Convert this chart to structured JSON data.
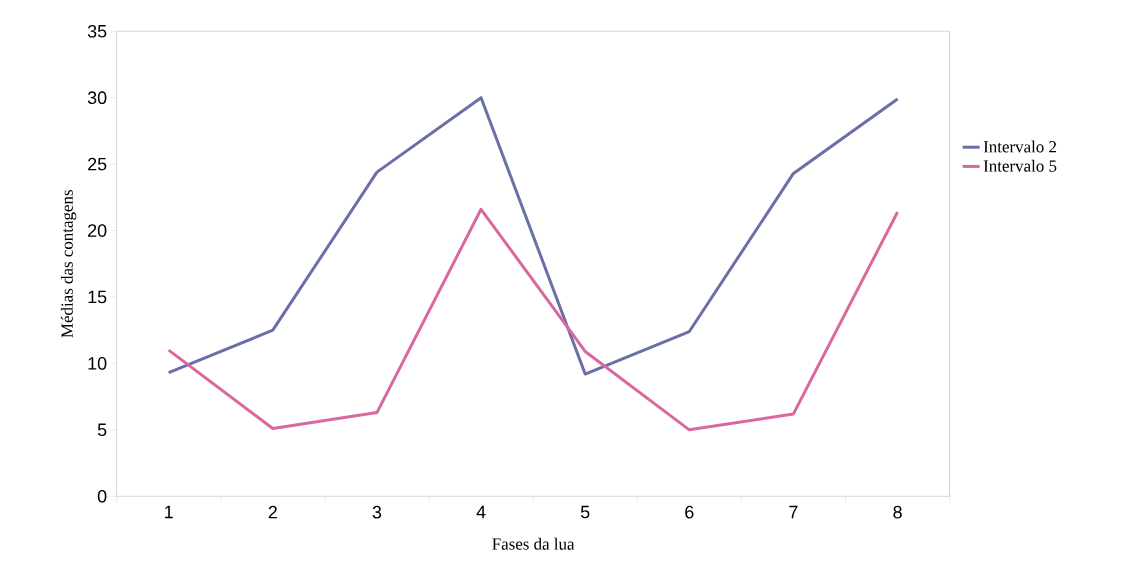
{
  "chart_data": {
    "type": "line",
    "xlabel": "Fases da lua",
    "ylabel": "Médias das contagens",
    "categories": [
      "1",
      "2",
      "3",
      "4",
      "5",
      "6",
      "7",
      "8"
    ],
    "series": [
      {
        "name": "Intervalo 2",
        "color": "#6a6fa8",
        "values": [
          9.3,
          12.5,
          24.4,
          30,
          9.2,
          12.4,
          24.3,
          29.9
        ]
      },
      {
        "name": "Intervalo 5",
        "color": "#d9689e",
        "values": [
          11,
          5.1,
          6.3,
          21.6,
          10.9,
          5,
          6.2,
          21.4
        ]
      }
    ],
    "ylim": [
      0,
      35
    ],
    "yticks": [
      0,
      5,
      10,
      15,
      20,
      25,
      30,
      35
    ],
    "grid": false,
    "legend": "right",
    "marker": "none",
    "line_style": "solid"
  }
}
